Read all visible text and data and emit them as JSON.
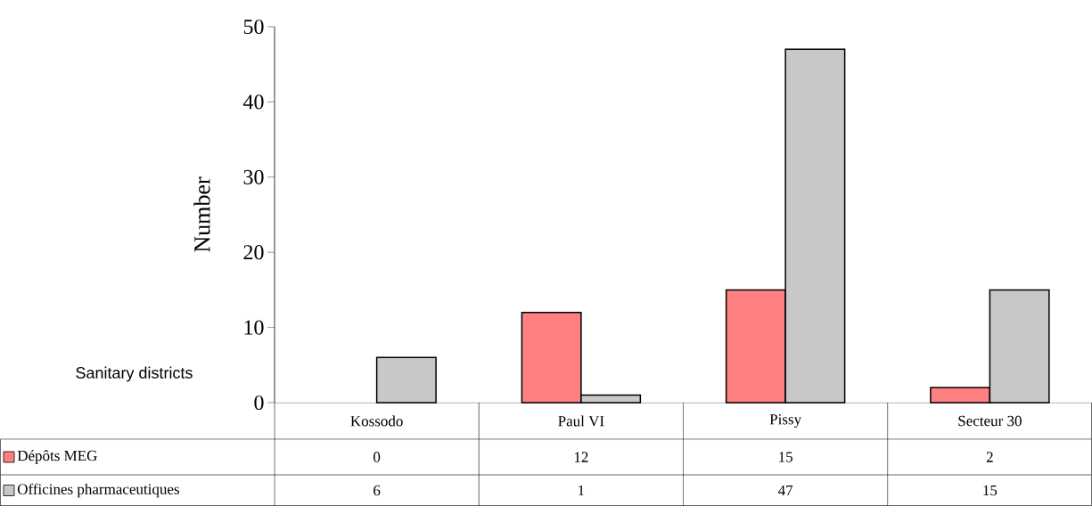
{
  "chart_data": {
    "type": "bar",
    "xlabel": "Sanitary districts",
    "ylabel": "Number",
    "categories": [
      "Kossodo",
      "Paul VI",
      "Pissy",
      "Secteur 30"
    ],
    "series": [
      {
        "name": "Dépôts MEG",
        "color": "#ff8080",
        "values": [
          0,
          12,
          15,
          2
        ]
      },
      {
        "name": "Officines pharmaceutiques",
        "color": "#c8c8c8",
        "values": [
          6,
          1,
          47,
          15
        ]
      }
    ],
    "ylim": [
      0,
      50
    ],
    "yticks": [
      0,
      10,
      20,
      30,
      40,
      50
    ],
    "grid": false,
    "legend": "bottom",
    "data_labels": true
  }
}
